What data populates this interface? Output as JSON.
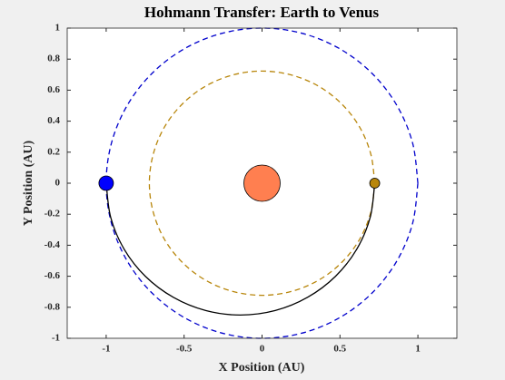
{
  "chart_data": {
    "type": "line",
    "title": "Hohmann Transfer: Earth to Venus",
    "x_label": "X Position (AU)",
    "y_label": "Y Position (AU)",
    "xlim": [
      -1.25,
      1.25
    ],
    "ylim": [
      -1,
      1
    ],
    "xticks": [
      -1,
      -0.5,
      0,
      0.5,
      1
    ],
    "yticks": [
      -1,
      -0.8,
      -0.6,
      -0.4,
      -0.2,
      0,
      0.2,
      0.4,
      0.6,
      0.8,
      1
    ],
    "series": [
      {
        "mode": "line",
        "line_style": "dashed",
        "color": "#0000cc",
        "x": [
          1,
          0.966,
          0.866,
          0.707,
          0.5,
          0.259,
          0,
          -0.259,
          -0.5,
          -0.707,
          -0.866,
          -0.966,
          -1,
          -0.966,
          -0.866,
          -0.707,
          -0.5,
          -0.259,
          0,
          0.259,
          0.5,
          0.707,
          0.866,
          0.966,
          1
        ],
        "values": [
          0,
          0.259,
          0.5,
          0.707,
          0.866,
          0.966,
          1,
          0.966,
          0.866,
          0.707,
          0.5,
          0.259,
          0,
          -0.259,
          -0.5,
          -0.707,
          -0.866,
          -0.966,
          -1,
          -0.966,
          -0.866,
          -0.707,
          -0.5,
          -0.259,
          0
        ]
      },
      {
        "mode": "line",
        "line_style": "dashed",
        "color": "#b8860b",
        "x": [
          0.723,
          0.698,
          0.626,
          0.511,
          0.362,
          0.187,
          0,
          -0.187,
          -0.362,
          -0.511,
          -0.626,
          -0.698,
          -0.723,
          -0.698,
          -0.626,
          -0.511,
          -0.362,
          -0.187,
          0,
          0.187,
          0.362,
          0.511,
          0.626,
          0.698,
          0.723
        ],
        "values": [
          0,
          0.187,
          0.362,
          0.511,
          0.626,
          0.698,
          0.723,
          0.698,
          0.626,
          0.511,
          0.362,
          0.187,
          0,
          -0.187,
          -0.362,
          -0.511,
          -0.626,
          -0.698,
          -0.723,
          -0.698,
          -0.626,
          -0.511,
          -0.362,
          -0.187,
          0
        ]
      },
      {
        "mode": "line",
        "line_style": "solid",
        "color": "#000000",
        "x": [
          -1,
          -0.971,
          -0.885,
          -0.748,
          -0.569,
          -0.362,
          -0.139,
          0.085,
          0.292,
          0.471,
          0.608,
          0.694,
          0.723
        ],
        "values": [
          0,
          -0.22,
          -0.425,
          -0.601,
          -0.736,
          -0.821,
          -0.85,
          -0.821,
          -0.736,
          -0.601,
          -0.425,
          -0.22,
          0
        ]
      },
      {
        "mode": "marker",
        "color": "#ff7f50",
        "x": [
          0
        ],
        "values": [
          0
        ]
      },
      {
        "mode": "marker",
        "color": "#0000ff",
        "x": [
          -1
        ],
        "values": [
          0
        ]
      },
      {
        "mode": "marker",
        "color": "#b8860b",
        "x": [
          0.723
        ],
        "values": [
          0
        ]
      }
    ]
  }
}
